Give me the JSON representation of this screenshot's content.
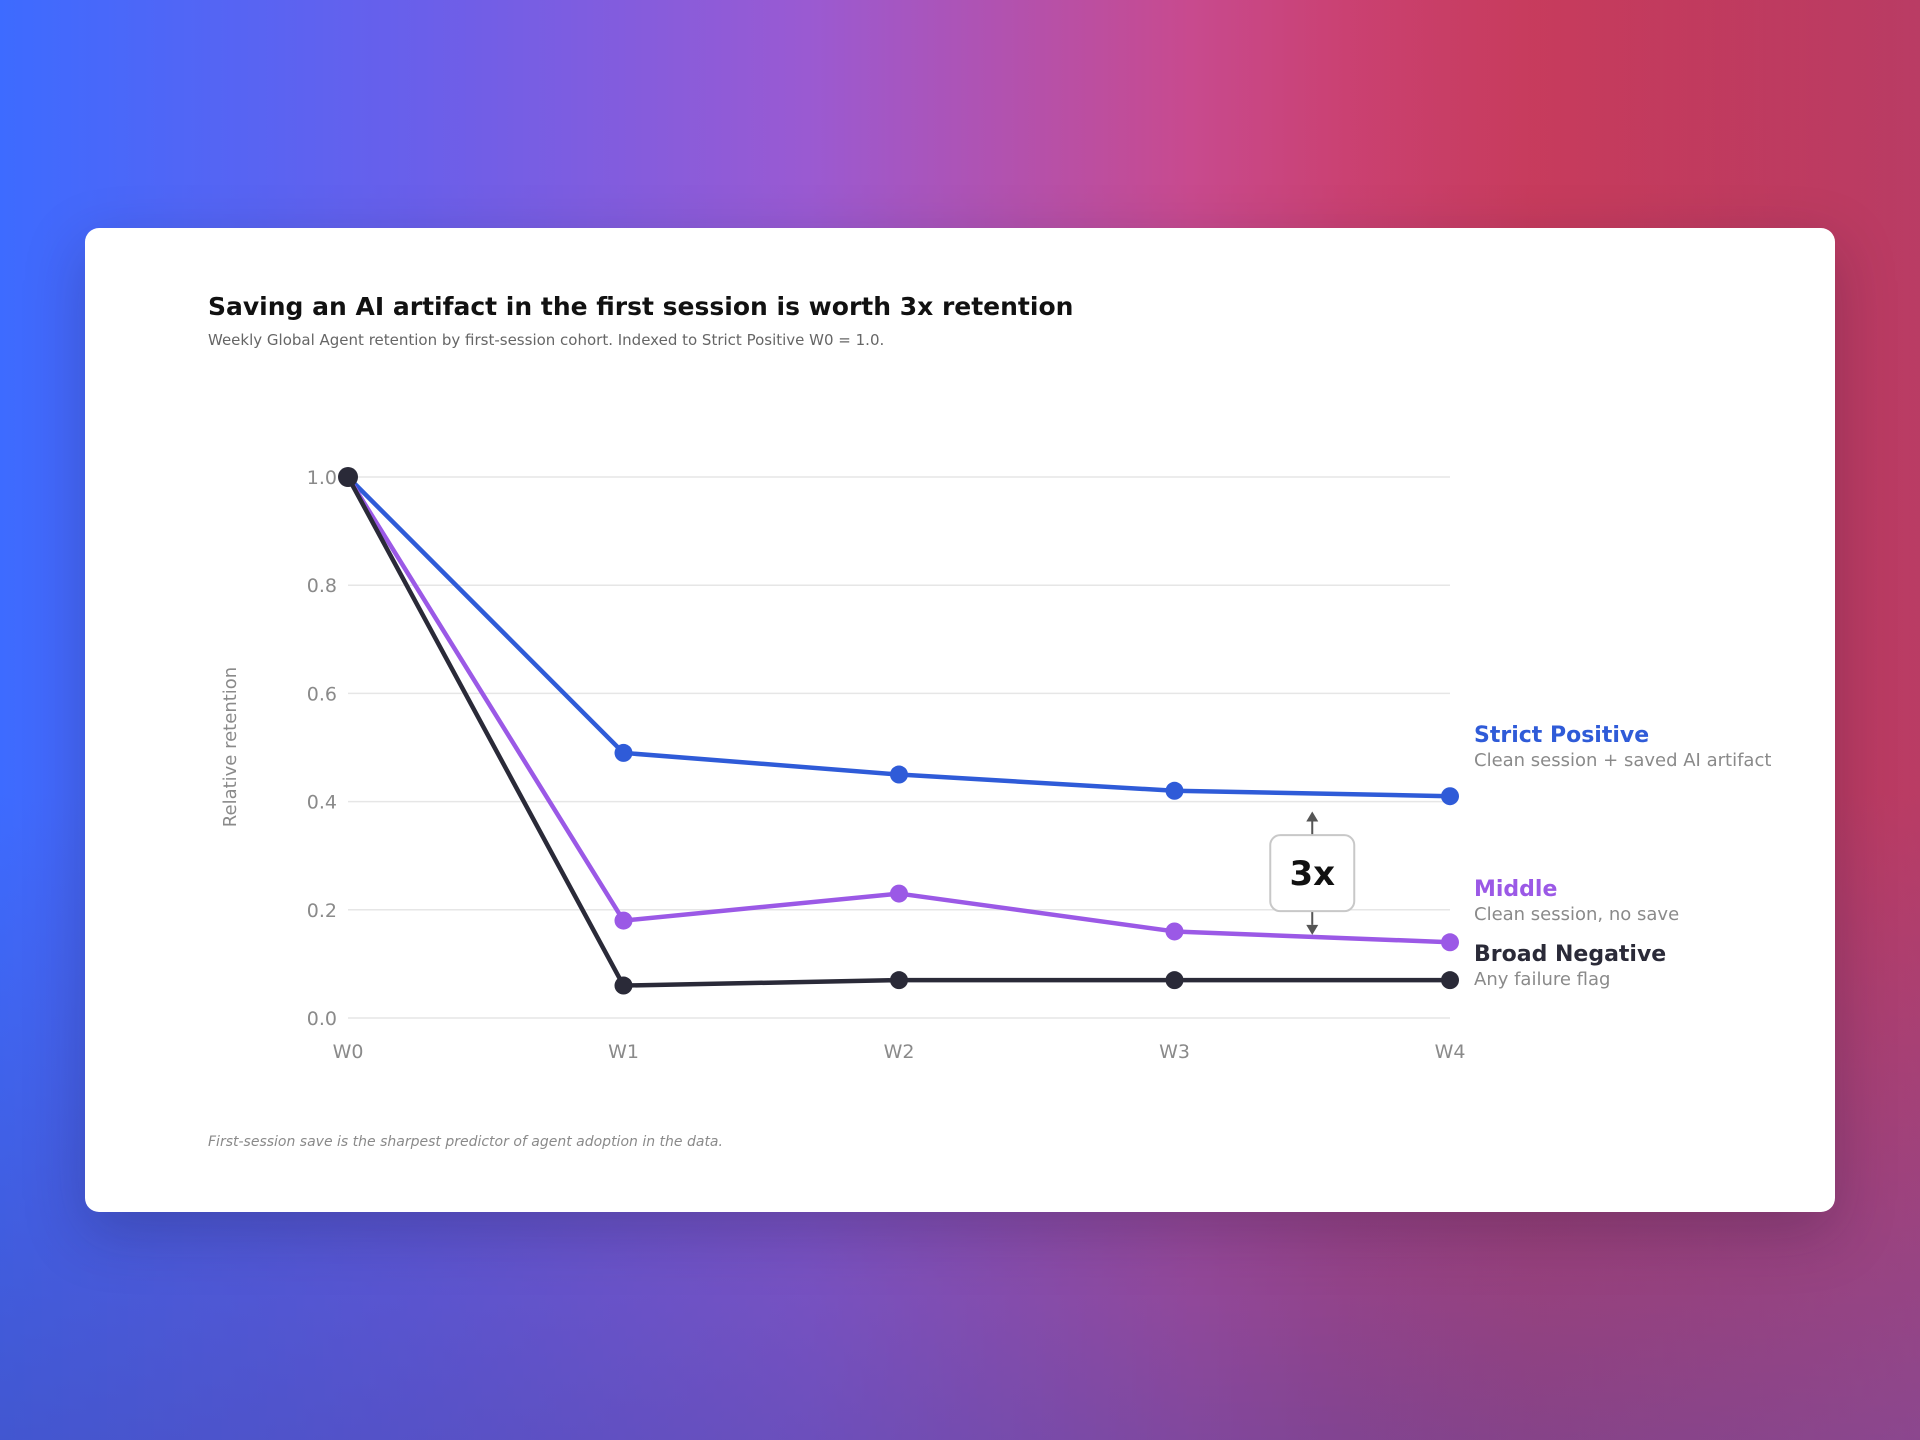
{
  "colors": {
    "strict_positive": "#2f5bd8",
    "middle": "#9b59e6",
    "broad_negative": "#2a2a38",
    "grid": "#e6e6e6",
    "card": "#ffffff"
  },
  "header": {
    "title": "Saving an AI artifact in the first session is worth 3x retention",
    "subtitle": "Weekly Global Agent retention by first-session cohort. Indexed to Strict Positive W0 = 1.0."
  },
  "footnote": "First-session save is the sharpest predictor of agent adoption in the data.",
  "annotation": {
    "label": "3x",
    "between": [
      "Strict Positive",
      "Middle"
    ],
    "between_x": "W3–W4"
  },
  "chart_data": {
    "type": "line",
    "title": "Saving an AI artifact in the first session is worth 3x retention",
    "subtitle": "Weekly Global Agent retention by first-session cohort. Indexed to Strict Positive W0 = 1.0.",
    "xlabel": "",
    "ylabel": "Relative retention",
    "categories": [
      "W0",
      "W1",
      "W2",
      "W3",
      "W4"
    ],
    "ylim": [
      0,
      1.0
    ],
    "yticks": [
      "0.0",
      "0.2",
      "0.4",
      "0.6",
      "0.8",
      "1.0"
    ],
    "grid": true,
    "legend": "direct labels at right",
    "series": [
      {
        "name": "Strict Positive",
        "description": "Clean session + saved AI artifact",
        "color": "#2f5bd8",
        "values": [
          1.0,
          0.49,
          0.45,
          0.42,
          0.41
        ]
      },
      {
        "name": "Middle",
        "description": "Clean session, no save",
        "color": "#9b59e6",
        "values": [
          1.0,
          0.18,
          0.23,
          0.16,
          0.14
        ]
      },
      {
        "name": "Broad Negative",
        "description": "Any failure flag",
        "color": "#2a2a38",
        "values": [
          1.0,
          0.06,
          0.07,
          0.07,
          0.07
        ]
      }
    ]
  }
}
